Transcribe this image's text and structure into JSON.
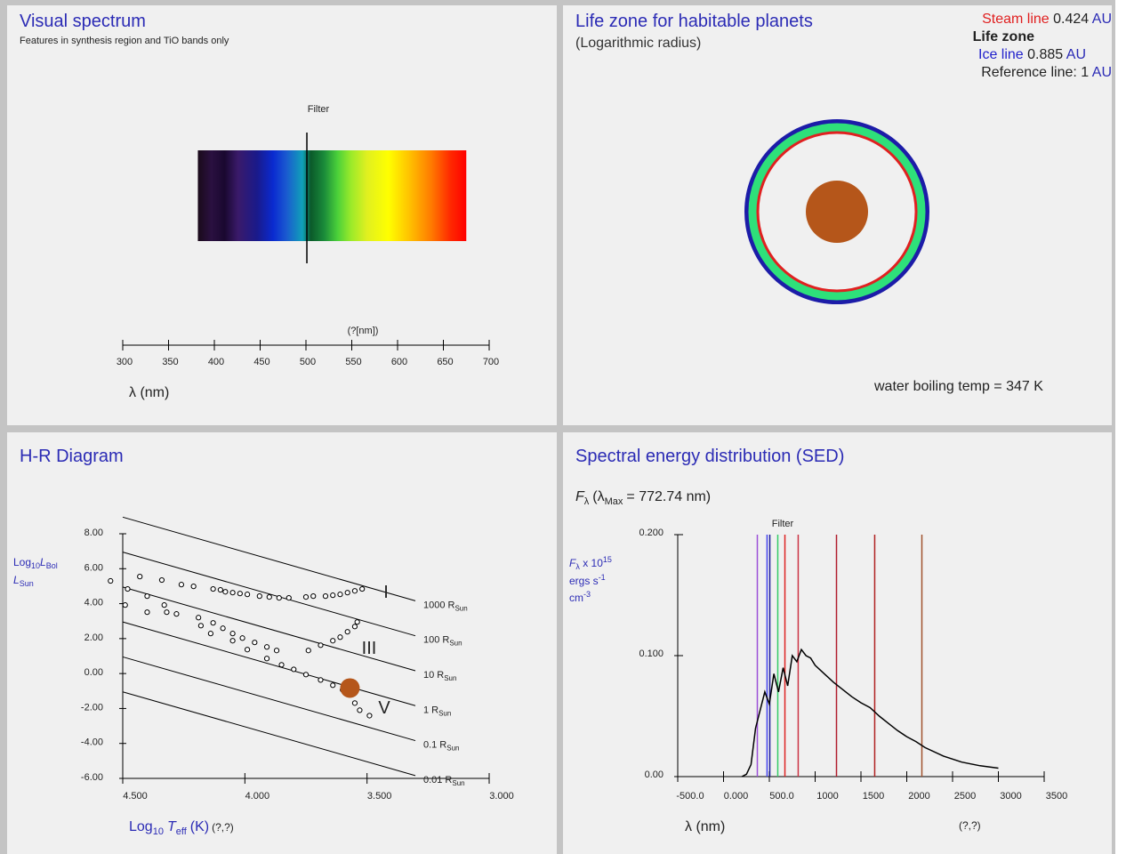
{
  "spectrum_panel": {
    "title": "Visual spectrum",
    "subtitle": "Features in synthesis region and TiO bands only",
    "filter_label": "Filter",
    "filter_nm": 501,
    "band_nm": [
      382,
      675
    ],
    "xlim": [
      300,
      700
    ],
    "xticks": [
      300,
      350,
      400,
      450,
      500,
      550,
      600,
      650,
      700
    ],
    "unit_label": "(?[nm])",
    "xlabel": "λ (nm)"
  },
  "lifezone_panel": {
    "title": "Life zone for habitable planets",
    "subtitle": "(Logarithmic radius)",
    "steam_line": {
      "label": "Steam line",
      "value": 0.424,
      "color": "#e02020"
    },
    "life_zone": {
      "label": "Life zone",
      "color": "#2ee07a"
    },
    "ice_line": {
      "label": "Ice line",
      "value": 0.885,
      "color": "#1c1ca8"
    },
    "reference_line": {
      "label": "Reference line:",
      "value": 1
    },
    "unit": "AU",
    "boiling": {
      "label": "water boiling temp =",
      "value": 347,
      "unit": "K"
    }
  },
  "hr_panel": {
    "title": "H-R Diagram",
    "xlabel": {
      "main": "Log",
      "sub": "10",
      "var": "T",
      "var_sub": "eff",
      "unit": "(K)",
      "coords": "(?,?)"
    },
    "ylabel": {
      "main": "Log",
      "sub": "10",
      "var": "L",
      "var_sub": "Bol",
      "denom": "L",
      "denom_sub": "Sun"
    },
    "xlim": [
      4.5,
      3.0
    ],
    "ylim": [
      -6,
      8
    ],
    "xticks": [
      {
        "value": 4.5,
        "label": "4.500"
      },
      {
        "value": 4.0,
        "label": "4.000"
      },
      {
        "value": 3.5,
        "label": "3.500"
      },
      {
        "value": 3.0,
        "label": "3.000"
      }
    ],
    "yticks": [
      {
        "value": 8,
        "label": "8.00"
      },
      {
        "value": 6,
        "label": "6.00"
      },
      {
        "value": 4,
        "label": "4.00"
      },
      {
        "value": 2,
        "label": "2.00"
      },
      {
        "value": 0,
        "label": "0.00"
      },
      {
        "value": -2,
        "label": "-2.00"
      },
      {
        "value": -4,
        "label": "-4.00"
      },
      {
        "value": -6,
        "label": "-6.00"
      }
    ],
    "radii": [
      1000,
      100,
      10,
      1,
      0.1,
      0.01
    ],
    "radius_unit": "R",
    "radius_sub": "Sun",
    "branches": [
      "I",
      "III",
      "V"
    ],
    "stars": {
      "log_teff": [
        4.13,
        4.1,
        4.08,
        4.05,
        4.02,
        3.99,
        3.94,
        3.9,
        3.86,
        3.82,
        3.75,
        3.72,
        3.67,
        3.64,
        3.61,
        3.58,
        3.55,
        3.52,
        4.43,
        4.34,
        4.26,
        4.21,
        4.19,
        4.13,
        4.09,
        4.05,
        4.01,
        3.96,
        3.91,
        3.87,
        3.74,
        3.69,
        3.64,
        3.61,
        3.58,
        3.55,
        3.54,
        4.55,
        4.48,
        4.4,
        4.33,
        4.28,
        4.14,
        4.05,
        3.99,
        3.91,
        3.85,
        3.8,
        3.75,
        3.69,
        3.64,
        3.6,
        3.55,
        3.53,
        3.49,
        4.49,
        4.4,
        4.32,
        4.18
      ],
      "log_l": [
        4.84,
        4.79,
        4.68,
        4.63,
        4.58,
        4.53,
        4.43,
        4.38,
        4.33,
        4.33,
        4.38,
        4.43,
        4.43,
        4.48,
        4.53,
        4.63,
        4.73,
        4.84,
        5.55,
        5.35,
        5.09,
        4.99,
        3.2,
        2.9,
        2.59,
        2.29,
        2.03,
        1.78,
        1.52,
        1.32,
        1.32,
        1.62,
        1.88,
        2.08,
        2.39,
        2.69,
        2.95,
        5.3,
        4.84,
        4.43,
        3.92,
        3.41,
        2.29,
        1.88,
        1.37,
        0.86,
        0.5,
        0.24,
        -0.06,
        -0.37,
        -0.67,
        -0.93,
        -1.69,
        -2.1,
        -2.41,
        3.92,
        3.51,
        3.51,
        2.74
      ]
    },
    "target": {
      "log_teff": 3.57,
      "log_l": -0.83,
      "color": "#b5561a"
    }
  },
  "sed_panel": {
    "title": "Spectral energy distribution (SED)",
    "flux": {
      "f": "F",
      "f_sub": "λ",
      "prefix": "(λ",
      "sub": "Max",
      "eq": "=",
      "value": 772.74,
      "unit": "nm)"
    },
    "ylabel": {
      "f": "F",
      "f_sub": "λ",
      "times": "x 10",
      "exp": "15",
      "l2": "ergs s",
      "l2_sup": "-1",
      "l3": "cm",
      "l3_sup": "-3"
    },
    "xlim": [
      -500,
      3500
    ],
    "ylim": [
      0,
      0.2
    ],
    "xticks": [
      {
        "value": -500,
        "label": "-500.0"
      },
      {
        "value": 0,
        "label": "0.000"
      },
      {
        "value": 500,
        "label": "500.0"
      },
      1000,
      1500,
      2000,
      2500,
      3000,
      3500
    ],
    "yticks": [
      {
        "value": 0,
        "label": "0.00"
      },
      {
        "value": 0.1,
        "label": "0.100"
      },
      {
        "value": 0.2,
        "label": "0.200"
      }
    ],
    "filter_label": "Filter",
    "lines": [
      {
        "x": 369,
        "color": "#9b4fd8"
      },
      {
        "x": 475,
        "color": "#4444ee"
      },
      {
        "x": 505,
        "color": "#1a1a99"
      },
      {
        "x": 592,
        "color": "#33cc66"
      },
      {
        "x": 670,
        "color": "#dd2222"
      },
      {
        "x": 815,
        "color": "#cc3344"
      },
      {
        "x": 1233,
        "color": "#b01c2c"
      },
      {
        "x": 1650,
        "color": "#b02020"
      },
      {
        "x": 2165,
        "color": "#a0522d"
      }
    ],
    "curve": {
      "x": [
        200,
        250,
        300,
        350,
        400,
        450,
        500,
        550,
        600,
        650,
        700,
        750,
        800,
        850,
        900,
        950,
        1000,
        1100,
        1200,
        1300,
        1400,
        1500,
        1600,
        1700,
        1800,
        1900,
        2000,
        2100,
        2200,
        2400,
        2600,
        2800,
        3000
      ],
      "y": [
        0,
        0.002,
        0.01,
        0.04,
        0.055,
        0.07,
        0.06,
        0.085,
        0.07,
        0.09,
        0.075,
        0.1,
        0.095,
        0.105,
        0.1,
        0.098,
        0.092,
        0.085,
        0.078,
        0.072,
        0.066,
        0.061,
        0.057,
        0.05,
        0.044,
        0.038,
        0.033,
        0.029,
        0.024,
        0.017,
        0.012,
        0.009,
        0.007
      ]
    },
    "xlabel": "λ (nm)",
    "coords": "(?,?)"
  }
}
